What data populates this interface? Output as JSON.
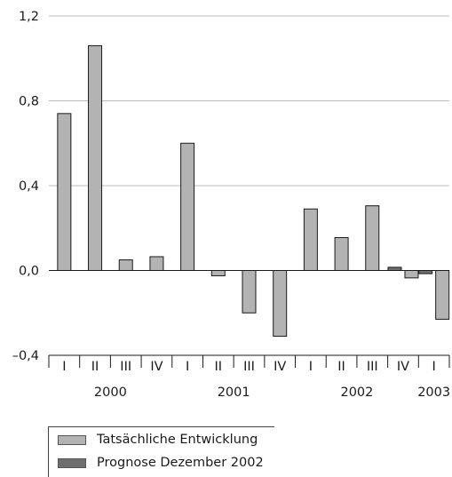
{
  "chart_data": {
    "type": "bar",
    "categories": [
      "I",
      "II",
      "III",
      "IV",
      "I",
      "II",
      "III",
      "IV",
      "I",
      "II",
      "III",
      "IV",
      "I"
    ],
    "years": [
      {
        "label": "2000",
        "start": 0,
        "end": 3
      },
      {
        "label": "2001",
        "start": 4,
        "end": 7
      },
      {
        "label": "2002",
        "start": 8,
        "end": 11
      },
      {
        "label": "2003",
        "start": 12,
        "end": 12
      }
    ],
    "series": [
      {
        "name": "Tatsächliche Entwicklung",
        "color": "#b3b3b3",
        "values": [
          0.74,
          1.06,
          0.05,
          0.065,
          0.6,
          -0.025,
          -0.2,
          -0.31,
          0.29,
          0.155,
          0.305,
          -0.035,
          -0.23
        ]
      },
      {
        "name": "Prognose Dezember 2002",
        "color": "#6e6e6e",
        "values": [
          null,
          null,
          null,
          null,
          null,
          null,
          null,
          null,
          null,
          null,
          null,
          0.015,
          -0.015
        ]
      }
    ],
    "y_ticks": [
      "1,2",
      "0,8",
      "0,4",
      "0,0",
      "–0,4"
    ],
    "y_tick_values": [
      1.2,
      0.8,
      0.4,
      0.0,
      -0.4
    ],
    "ylim": [
      -0.4,
      1.2
    ],
    "grid": true,
    "title": "",
    "xlabel": "",
    "ylabel": ""
  }
}
